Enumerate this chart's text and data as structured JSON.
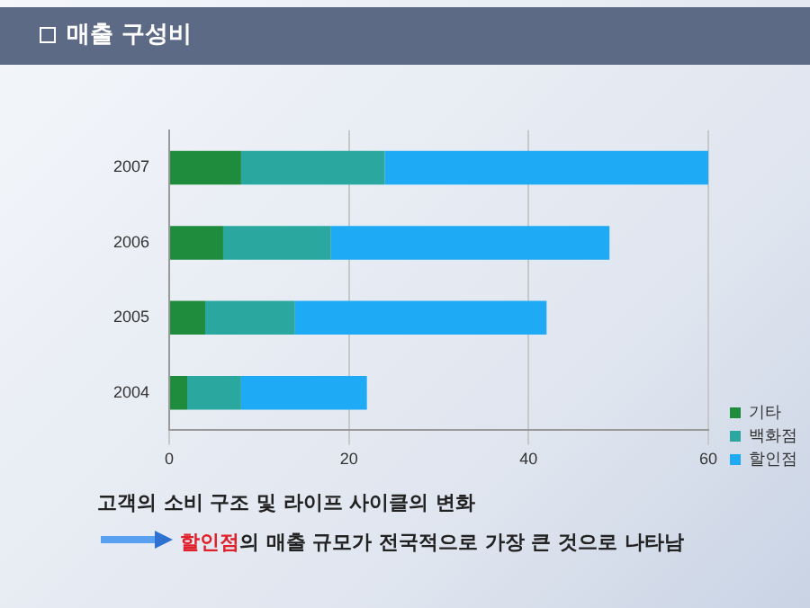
{
  "chart_data": {
    "type": "bar",
    "orientation": "horizontal",
    "stacked": true,
    "title": "매출 구성비",
    "categories": [
      "2007",
      "2006",
      "2005",
      "2004"
    ],
    "series": [
      {
        "name": "기타",
        "color": "#1e8c3c",
        "values": [
          8,
          6,
          4,
          2
        ]
      },
      {
        "name": "백화점",
        "color": "#2aa8a0",
        "values": [
          16,
          12,
          10,
          6
        ]
      },
      {
        "name": "할인점",
        "color": "#1eaaf5",
        "values": [
          36,
          31,
          28,
          14
        ]
      }
    ],
    "xlim": [
      0,
      60
    ],
    "xticks": [
      0,
      20,
      40,
      60
    ],
    "grid": "x",
    "legend": "right",
    "annotations": [
      "고객의 소비 구조 및 라이프 사이클의 변화",
      "할인점",
      "의 매출 규모가 전국적으로 가장 큰 것으로 나타남"
    ]
  }
}
